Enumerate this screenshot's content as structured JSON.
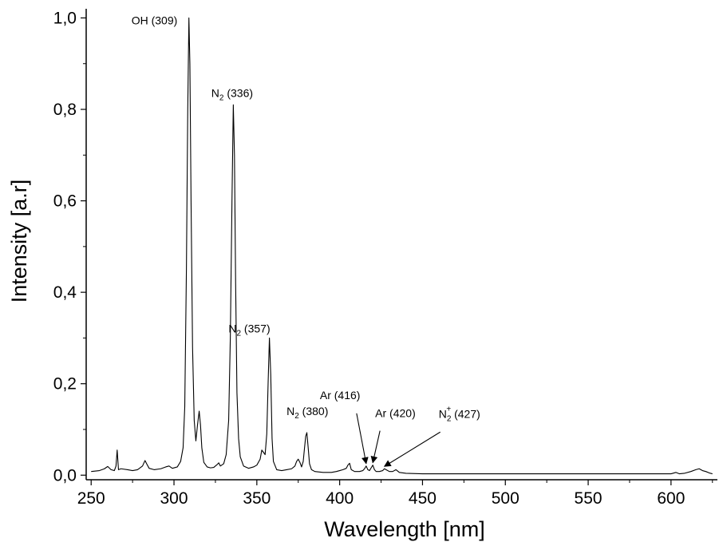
{
  "chart_data": {
    "type": "line",
    "title": "",
    "xlabel": "Wavelength [nm]",
    "ylabel": "Intensity [a.r]",
    "xlim": [
      247,
      628
    ],
    "ylim": [
      -0.01,
      1.02
    ],
    "grid": false,
    "x_ticks": [
      250,
      300,
      350,
      400,
      450,
      500,
      550,
      600
    ],
    "x_tick_labels": [
      "250",
      "300",
      "350",
      "400",
      "450",
      "500",
      "550",
      "600"
    ],
    "y_ticks": [
      0.0,
      0.2,
      0.4,
      0.6,
      0.8,
      1.0
    ],
    "y_tick_labels": [
      "0,0",
      "0,2",
      "0,4",
      "0,6",
      "0,8",
      "1,0"
    ],
    "series": [
      {
        "color": "#000000",
        "x": [
          250,
          255,
          258,
          260,
          262,
          264,
          265,
          265.7,
          266.5,
          268,
          272,
          275,
          278,
          281,
          282.5,
          283.5,
          285,
          288,
          292,
          295,
          297,
          299,
          302,
          304,
          305.5,
          306.5,
          307.5,
          308.3,
          309,
          309.6,
          310.3,
          311.2,
          312.2,
          313.2,
          314.2,
          315.2,
          316,
          316.8,
          318,
          320,
          322,
          324,
          326,
          327,
          328,
          330,
          331.5,
          333,
          334,
          335,
          335.8,
          336.5,
          337.2,
          338,
          339,
          340,
          342,
          345,
          348,
          350,
          352,
          353,
          354,
          355,
          356,
          356.8,
          357.6,
          358.4,
          359.2,
          360,
          362,
          365,
          368,
          371,
          373,
          374,
          375,
          376,
          377,
          378,
          378.8,
          379.5,
          380.2,
          381,
          381.8,
          383,
          385,
          390,
          395,
          398,
          400,
          402,
          404,
          405,
          406,
          407,
          409,
          412,
          414,
          415,
          416,
          417,
          418,
          419,
          420,
          421,
          422,
          424,
          426,
          427,
          428,
          430,
          432,
          434,
          436,
          440,
          450,
          500,
          550,
          600,
          603,
          605,
          608,
          612,
          615,
          617,
          619,
          621,
          623,
          625
        ],
        "y": [
          0.008,
          0.01,
          0.014,
          0.019,
          0.012,
          0.01,
          0.02,
          0.055,
          0.012,
          0.014,
          0.012,
          0.01,
          0.012,
          0.02,
          0.032,
          0.025,
          0.015,
          0.012,
          0.014,
          0.018,
          0.02,
          0.015,
          0.018,
          0.03,
          0.06,
          0.15,
          0.45,
          0.8,
          1.0,
          0.9,
          0.6,
          0.28,
          0.12,
          0.075,
          0.11,
          0.14,
          0.11,
          0.06,
          0.028,
          0.018,
          0.016,
          0.017,
          0.023,
          0.027,
          0.02,
          0.025,
          0.045,
          0.12,
          0.3,
          0.6,
          0.81,
          0.7,
          0.42,
          0.18,
          0.08,
          0.04,
          0.02,
          0.015,
          0.018,
          0.022,
          0.035,
          0.055,
          0.05,
          0.045,
          0.09,
          0.2,
          0.3,
          0.22,
          0.08,
          0.03,
          0.012,
          0.01,
          0.012,
          0.014,
          0.02,
          0.03,
          0.035,
          0.028,
          0.018,
          0.03,
          0.06,
          0.085,
          0.093,
          0.06,
          0.025,
          0.012,
          0.008,
          0.006,
          0.006,
          0.008,
          0.01,
          0.012,
          0.015,
          0.022,
          0.026,
          0.012,
          0.008,
          0.008,
          0.01,
          0.014,
          0.02,
          0.012,
          0.01,
          0.016,
          0.022,
          0.012,
          0.008,
          0.008,
          0.01,
          0.014,
          0.012,
          0.008,
          0.008,
          0.012,
          0.006,
          0.004,
          0.003,
          0.003,
          0.003,
          0.003,
          0.006,
          0.003,
          0.004,
          0.008,
          0.012,
          0.014,
          0.01,
          0.008,
          0.005,
          0.003
        ]
      }
    ],
    "annotations": [
      {
        "main": "OH (309)",
        "sub": "",
        "sup": "",
        "rest": "",
        "tx": 309,
        "ty": 1.0,
        "arrow": false
      },
      {
        "main": "N",
        "sub": "2",
        "sup": "",
        "rest": " (336)",
        "tx": 336,
        "ty": 0.81,
        "arrow": false
      },
      {
        "main": "N",
        "sub": "2",
        "sup": "",
        "rest": " (357)",
        "tx": 357,
        "ty": 0.3,
        "arrow": false
      },
      {
        "main": "N",
        "sub": "2",
        "sup": "",
        "rest": " (380)",
        "tx": 380,
        "ty": 0.093,
        "arrow": false
      },
      {
        "main": "Ar (416)",
        "sub": "",
        "sup": "",
        "rest": "",
        "tx": 416,
        "ty": 0.02,
        "arrow": true
      },
      {
        "main": "Ar (420)",
        "sub": "",
        "sup": "",
        "rest": "",
        "tx": 420,
        "ty": 0.022,
        "arrow": true
      },
      {
        "main": "N",
        "sub": "2",
        "sup": "+",
        "rest": " (427)",
        "tx": 427,
        "ty": 0.014,
        "arrow": true
      }
    ]
  }
}
